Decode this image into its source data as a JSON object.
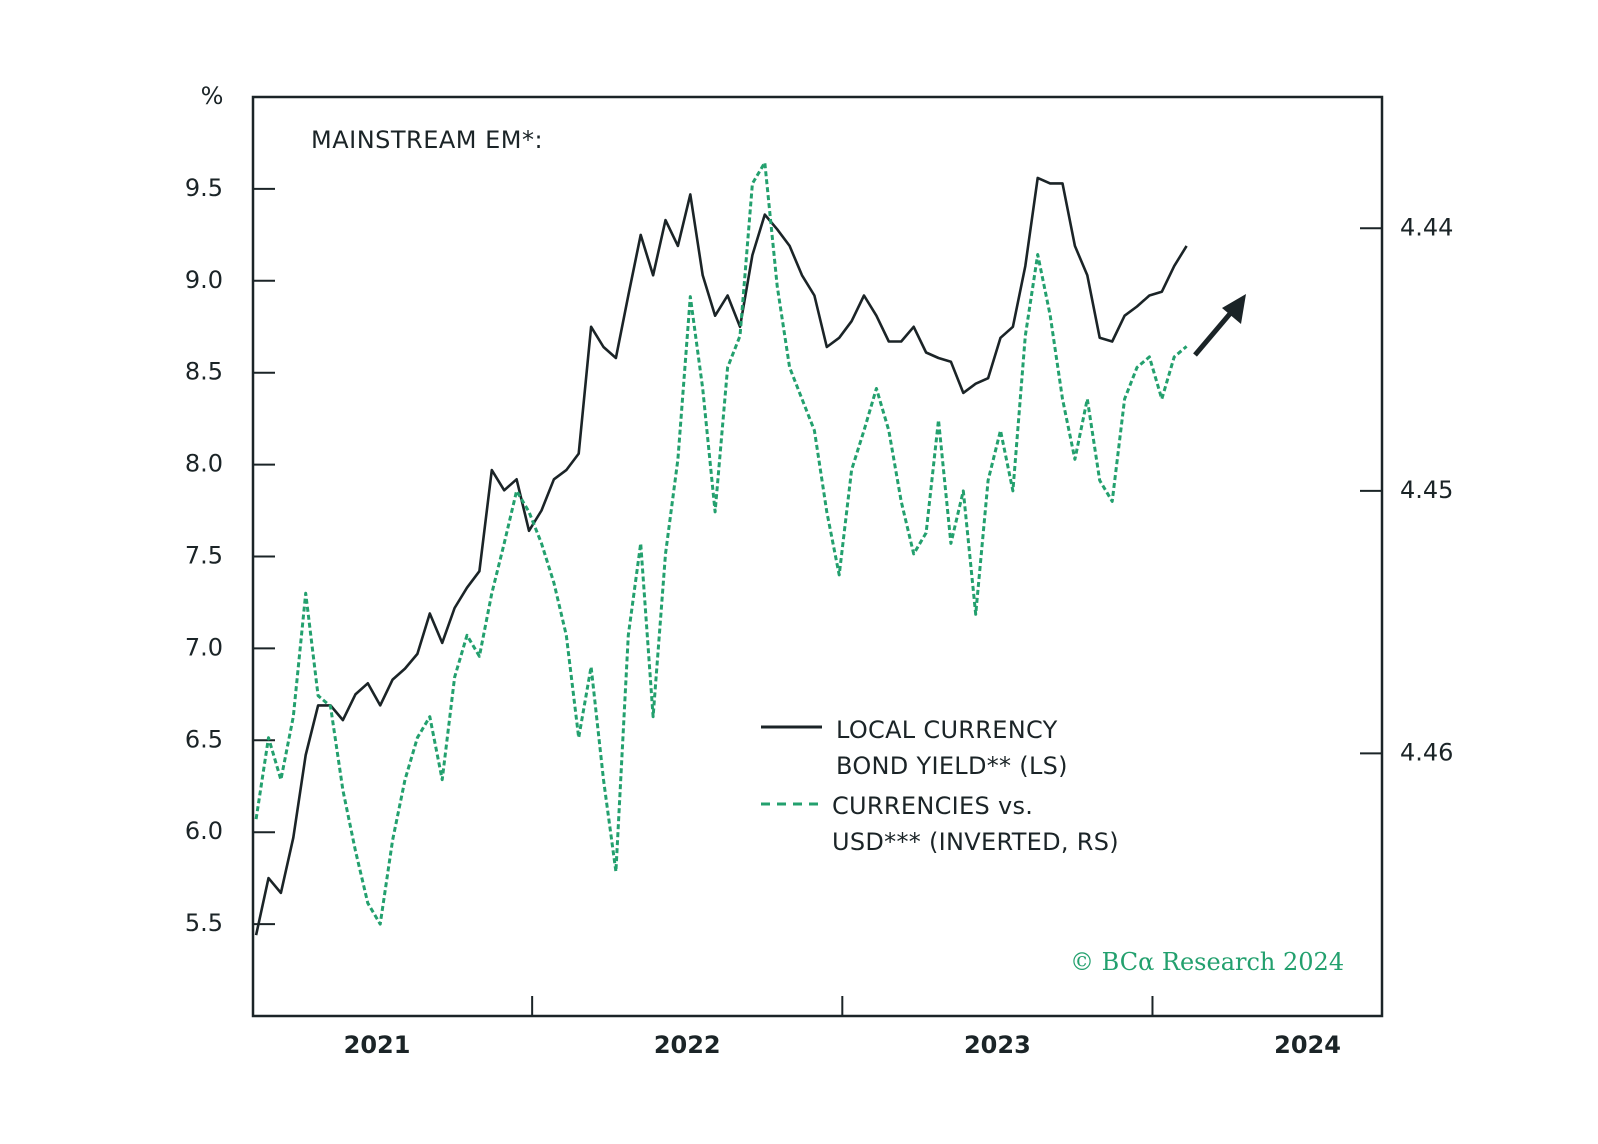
{
  "chart_data": {
    "type": "line",
    "title": "MAINSTREAM EM*:",
    "y_label": "%",
    "source": "© BCα Research 2024",
    "x": [
      2020.61,
      2020.65,
      2020.69,
      2020.73,
      2020.77,
      2020.81,
      2020.85,
      2020.89,
      2020.93,
      2020.97,
      2021.01,
      2021.05,
      2021.09,
      2021.13,
      2021.17,
      2021.21,
      2021.25,
      2021.29,
      2021.33,
      2021.37,
      2021.41,
      2021.45,
      2021.49,
      2021.53,
      2021.57,
      2021.61,
      2021.65,
      2021.69,
      2021.73,
      2021.77,
      2021.81,
      2021.85,
      2021.89,
      2021.93,
      2021.97,
      2022.01,
      2022.05,
      2022.09,
      2022.13,
      2022.17,
      2022.21,
      2022.25,
      2022.29,
      2022.33,
      2022.37,
      2022.41,
      2022.45,
      2022.49,
      2022.53,
      2022.57,
      2022.61,
      2022.65,
      2022.69,
      2022.73,
      2022.77,
      2022.81,
      2022.85,
      2022.89,
      2022.93,
      2022.97,
      2023.01,
      2023.05,
      2023.09,
      2023.13,
      2023.17,
      2023.21,
      2023.25,
      2023.29,
      2023.33,
      2023.37,
      2023.41,
      2023.45,
      2023.49,
      2023.53,
      2023.57,
      2023.61
    ],
    "series": [
      {
        "name": "LOCAL CURRENCY\nBOND YIELD** (LS)",
        "color": "#1b2427",
        "style": "solid",
        "values": [
          5.44,
          5.75,
          5.67,
          5.97,
          6.42,
          6.69,
          6.69,
          6.61,
          6.75,
          6.81,
          6.69,
          6.83,
          6.89,
          6.97,
          7.19,
          7.03,
          7.22,
          7.33,
          7.42,
          7.97,
          7.86,
          7.92,
          7.64,
          7.75,
          7.92,
          7.97,
          8.06,
          8.75,
          8.64,
          8.58,
          8.92,
          9.25,
          9.03,
          9.33,
          9.19,
          9.47,
          9.03,
          8.81,
          8.92,
          8.75,
          9.14,
          9.36,
          9.28,
          9.19,
          9.03,
          8.92,
          8.64,
          8.69,
          8.78,
          8.92,
          8.81,
          8.67,
          8.67,
          8.75,
          8.61,
          8.58,
          8.56,
          8.39,
          8.44,
          8.47,
          8.69,
          8.75,
          9.08,
          9.56,
          9.53,
          9.53,
          9.19,
          9.03,
          8.69,
          8.67,
          8.81,
          8.86,
          8.92,
          8.94,
          9.08,
          9.19
        ]
      },
      {
        "name": "CURRENCIES vs.\nUSD*** (INVERTED, RS)",
        "color": "#23a06e",
        "style": "dashed",
        "axis": "y2",
        "values": [
          4.4625,
          4.4594,
          4.461,
          4.4586,
          4.4539,
          4.4578,
          4.4582,
          4.4614,
          4.4637,
          4.4657,
          4.4665,
          4.4633,
          4.461,
          4.4594,
          4.4586,
          4.461,
          4.4571,
          4.4555,
          4.4563,
          4.4539,
          4.452,
          4.45,
          4.4508,
          4.452,
          4.4535,
          4.4555,
          4.4594,
          4.4567,
          4.461,
          4.4645,
          4.4555,
          4.452,
          4.4586,
          4.4524,
          4.4488,
          4.4426,
          4.4461,
          4.4508,
          4.4453,
          4.4441,
          4.4383,
          4.4375,
          4.4422,
          4.4453,
          4.4465,
          4.4477,
          4.4508,
          4.4532,
          4.4492,
          4.4477,
          4.4461,
          4.4477,
          4.4504,
          4.4524,
          4.4516,
          4.4473,
          4.452,
          4.45,
          4.4547,
          4.4496,
          4.4477,
          4.45,
          4.4441,
          4.441,
          4.4433,
          4.4465,
          4.4488,
          4.4465,
          4.4496,
          4.4504,
          4.4465,
          4.4453,
          4.4449,
          4.4465,
          4.4449,
          4.4445
        ]
      }
    ],
    "xlim": [
      2020.6,
      2024.24
    ],
    "xticks": [
      2021,
      2022,
      2023,
      2024
    ],
    "ylim": [
      5.0,
      10.0
    ],
    "yticks": [
      5.5,
      {
        "value": 6,
        "label": "6.0"
      },
      6.5,
      {
        "value": 7,
        "label": "7.0"
      },
      7.5,
      {
        "value": 8,
        "label": "8.0"
      },
      8.5,
      {
        "value": 9,
        "label": "9.0"
      },
      9.5
    ],
    "y2lim": [
      4.435,
      4.47
    ],
    "y2ticks": [
      4.44,
      4.45,
      4.46
    ],
    "y2_inverted": true,
    "grid": false
  }
}
